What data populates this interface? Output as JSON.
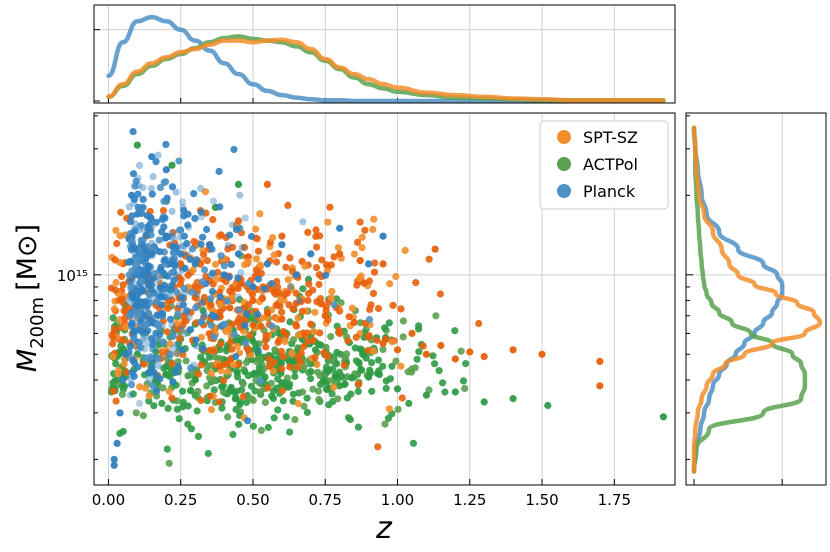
{
  "chart_data": {
    "type": "scatter",
    "title": "",
    "xlabel": "z",
    "ylabel_main": "M",
    "ylabel_sub": "200m",
    "ylabel_unit": "[M⊙]",
    "y_scale": "log",
    "xlim": [
      -0.05,
      1.96
    ],
    "ylim": [
      160000000000000.0,
      4100000000000000.0
    ],
    "x_ticks": [
      0.0,
      0.25,
      0.5,
      0.75,
      1.0,
      1.25,
      1.5,
      1.75
    ],
    "x_tick_labels": [
      "0.00",
      "0.25",
      "0.50",
      "0.75",
      "1.00",
      "1.25",
      "1.50",
      "1.75"
    ],
    "y_tick_label": "10¹⁵",
    "y_tick_value": 1000000000000000.0,
    "grid": true,
    "legend_position": "top-right",
    "series": [
      {
        "name": "SPT-SZ",
        "color": "#f28e2b",
        "dark_color": "#e8600c",
        "points": [
          [
            0.12,
            1000000000000000.0
          ],
          [
            0.18,
            900000000000000.0
          ],
          [
            0.25,
            1100000000000000.0
          ],
          [
            0.3,
            820000000000000.0
          ],
          [
            0.35,
            950000000000000.0
          ],
          [
            0.42,
            750000000000000.0
          ],
          [
            0.5,
            800000000000000.0
          ],
          [
            0.55,
            720000000000000.0
          ],
          [
            0.6,
            680000000000000.0
          ],
          [
            0.65,
            780000000000000.0
          ],
          [
            0.7,
            650000000000000.0
          ],
          [
            0.75,
            700000000000000.0
          ],
          [
            0.8,
            600000000000000.0
          ],
          [
            0.85,
            660000000000000.0
          ],
          [
            0.9,
            580000000000000.0
          ],
          [
            0.95,
            550000000000000.0
          ],
          [
            1.0,
            520000000000000.0
          ],
          [
            1.05,
            600000000000000.0
          ],
          [
            1.1,
            500000000000000.0
          ],
          [
            1.15,
            540000000000000.0
          ],
          [
            1.2,
            480000000000000.0
          ],
          [
            1.25,
            510000000000000.0
          ],
          [
            1.3,
            490000000000000.0
          ],
          [
            1.4,
            520000000000000.0
          ],
          [
            1.5,
            500000000000000.0
          ],
          [
            1.7,
            470000000000000.0
          ],
          [
            1.7,
            380000000000000.0
          ],
          [
            0.2,
            1400000000000000.0
          ],
          [
            0.35,
            1300000000000000.0
          ],
          [
            0.45,
            1600000000000000.0
          ],
          [
            0.6,
            1400000000000000.0
          ],
          [
            0.8,
            1200000000000000.0
          ],
          [
            0.95,
            1100000000000000.0
          ],
          [
            1.13,
            1250000000000000.0
          ],
          [
            0.55,
            2200000000000000.0
          ]
        ],
        "cloud": {
          "z_center": 0.45,
          "z_spread": 0.28,
          "m_center": 760000000000000.0,
          "m_spread": 0.16,
          "count": 520
        }
      },
      {
        "name": "ACTPol",
        "color": "#59a14f",
        "dark_color": "#2e9a44",
        "points": [
          [
            0.1,
            500000000000000.0
          ],
          [
            0.2,
            450000000000000.0
          ],
          [
            0.3,
            400000000000000.0
          ],
          [
            0.4,
            460000000000000.0
          ],
          [
            0.5,
            420000000000000.0
          ],
          [
            0.6,
            390000000000000.0
          ],
          [
            0.7,
            430000000000000.0
          ],
          [
            0.8,
            380000000000000.0
          ],
          [
            0.9,
            410000000000000.0
          ],
          [
            1.0,
            370000000000000.0
          ],
          [
            1.1,
            350000000000000.0
          ],
          [
            1.2,
            360000000000000.0
          ],
          [
            1.3,
            330000000000000.0
          ],
          [
            1.4,
            340000000000000.0
          ],
          [
            1.52,
            320000000000000.0
          ],
          [
            1.92,
            290000000000000.0
          ],
          [
            0.3,
            650000000000000.0
          ],
          [
            0.5,
            600000000000000.0
          ],
          [
            0.7,
            580000000000000.0
          ],
          [
            0.1,
            3100000000000000.0
          ],
          [
            0.22,
            2600000000000000.0
          ],
          [
            0.45,
            2200000000000000.0
          ],
          [
            0.2,
            1900000000000000.0
          ],
          [
            0.37,
            1800000000000000.0
          ]
        ],
        "cloud": {
          "z_center": 0.52,
          "z_spread": 0.3,
          "m_center": 450000000000000.0,
          "m_spread": 0.11,
          "count": 560
        }
      },
      {
        "name": "Planck",
        "color": "#4e91c4",
        "dark_color": "#2f7fbf",
        "points": [
          [
            0.02,
            190000000000000.0
          ],
          [
            0.02,
            200000000000000.0
          ],
          [
            0.03,
            230000000000000.0
          ],
          [
            0.04,
            300000000000000.0
          ],
          [
            0.05,
            400000000000000.0
          ],
          [
            0.06,
            500000000000000.0
          ],
          [
            0.08,
            650000000000000.0
          ],
          [
            0.1,
            800000000000000.0
          ],
          [
            0.12,
            1000000000000000.0
          ],
          [
            0.15,
            1200000000000000.0
          ],
          [
            0.2,
            1400000000000000.0
          ],
          [
            0.25,
            1200000000000000.0
          ],
          [
            0.3,
            1100000000000000.0
          ],
          [
            0.35,
            1300000000000000.0
          ],
          [
            0.4,
            1000000000000000.0
          ],
          [
            0.45,
            1200000000000000.0
          ],
          [
            0.5,
            900000000000000.0
          ],
          [
            0.55,
            1100000000000000.0
          ],
          [
            0.6,
            1300000000000000.0
          ],
          [
            0.65,
            1000000000000000.0
          ],
          [
            0.7,
            1200000000000000.0
          ],
          [
            0.8,
            1500000000000000.0
          ],
          [
            0.9,
            1100000000000000.0
          ],
          [
            0.95,
            1400000000000000.0
          ],
          [
            0.15,
            2800000000000000.0
          ],
          [
            0.2,
            2500000000000000.0
          ],
          [
            0.1,
            1700000000000000.0
          ],
          [
            0.08,
            2000000000000000.0
          ]
        ],
        "cloud": {
          "z_center": 0.18,
          "z_spread": 0.14,
          "m_center": 950000000000000.0,
          "m_spread": 0.19,
          "count": 460
        }
      }
    ],
    "marginal_z": {
      "z": [
        0.0,
        0.05,
        0.1,
        0.15,
        0.2,
        0.25,
        0.3,
        0.35,
        0.4,
        0.45,
        0.5,
        0.55,
        0.6,
        0.65,
        0.7,
        0.75,
        0.8,
        0.85,
        0.9,
        0.95,
        1.0,
        1.1,
        1.2,
        1.3,
        1.4,
        1.5,
        1.6,
        1.7,
        1.8,
        1.92
      ],
      "SPT-SZ": [
        0.05,
        0.2,
        0.35,
        0.45,
        0.52,
        0.58,
        0.62,
        0.67,
        0.72,
        0.72,
        0.7,
        0.72,
        0.73,
        0.7,
        0.62,
        0.5,
        0.4,
        0.32,
        0.26,
        0.2,
        0.16,
        0.1,
        0.07,
        0.05,
        0.03,
        0.02,
        0.01,
        0.01,
        0.01,
        0.01
      ],
      "ACTPol": [
        0.05,
        0.18,
        0.32,
        0.42,
        0.5,
        0.56,
        0.63,
        0.7,
        0.75,
        0.77,
        0.74,
        0.72,
        0.7,
        0.65,
        0.58,
        0.48,
        0.38,
        0.28,
        0.2,
        0.15,
        0.11,
        0.07,
        0.04,
        0.03,
        0.02,
        0.01,
        0.01,
        0.01,
        0.01,
        0.01
      ],
      "Planck": [
        0.3,
        0.7,
        0.95,
        1.0,
        0.95,
        0.85,
        0.72,
        0.6,
        0.45,
        0.32,
        0.2,
        0.12,
        0.07,
        0.04,
        0.02,
        0.01,
        0.01,
        0.0,
        0.0,
        0.0,
        0.0,
        0.0,
        0.0,
        0.0,
        0.0,
        0.0,
        0.0,
        0.0,
        0.0,
        0.0
      ]
    },
    "marginal_m": {
      "m": [
        180000000000000.0,
        220000000000000.0,
        260000000000000.0,
        300000000000000.0,
        340000000000000.0,
        380000000000000.0,
        420000000000000.0,
        460000000000000.0,
        500000000000000.0,
        550000000000000.0,
        600000000000000.0,
        660000000000000.0,
        720000000000000.0,
        780000000000000.0,
        850000000000000.0,
        920000000000000.0,
        1000000000000000.0,
        1100000000000000.0,
        1250000000000000.0,
        1450000000000000.0,
        1700000000000000.0,
        2000000000000000.0,
        2500000000000000.0,
        3000000000000000.0,
        3600000000000000.0
      ],
      "SPT-SZ": [
        0.0,
        0.0,
        0.01,
        0.03,
        0.06,
        0.1,
        0.15,
        0.25,
        0.4,
        0.62,
        0.88,
        1.0,
        0.95,
        0.82,
        0.65,
        0.48,
        0.35,
        0.28,
        0.22,
        0.15,
        0.08,
        0.04,
        0.02,
        0.01,
        0.0
      ],
      "ACTPol": [
        0.0,
        0.02,
        0.12,
        0.55,
        0.85,
        0.88,
        0.88,
        0.85,
        0.78,
        0.62,
        0.45,
        0.3,
        0.2,
        0.14,
        0.1,
        0.08,
        0.07,
        0.06,
        0.05,
        0.04,
        0.03,
        0.02,
        0.01,
        0.01,
        0.0
      ],
      "Planck": [
        0.0,
        0.01,
        0.05,
        0.08,
        0.12,
        0.15,
        0.2,
        0.26,
        0.33,
        0.4,
        0.48,
        0.55,
        0.62,
        0.66,
        0.7,
        0.7,
        0.66,
        0.55,
        0.35,
        0.2,
        0.1,
        0.06,
        0.03,
        0.01,
        0.0
      ]
    }
  }
}
